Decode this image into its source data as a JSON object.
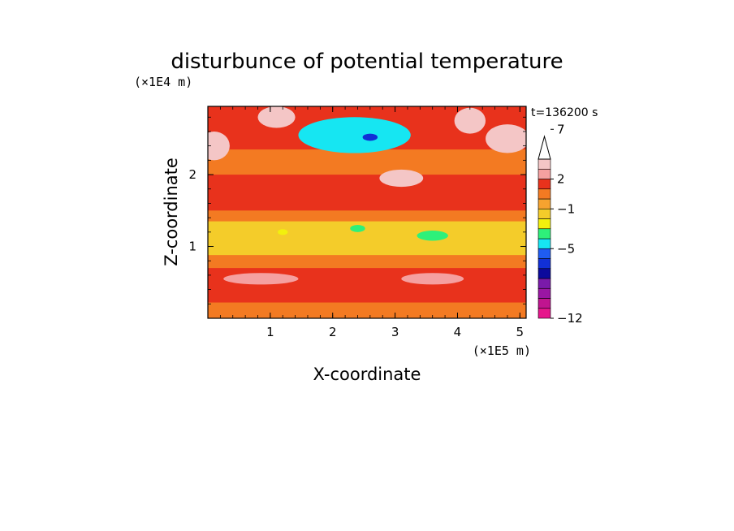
{
  "chart_data": {
    "type": "heatmap",
    "title": "disturbunce of potential temperature",
    "xlabel": "X-coordinate",
    "ylabel": "Z-coordinate",
    "x_unit": "(×1E5 m)",
    "z_unit": "(×1E4 m)",
    "time_label": "t=136200 s",
    "xlim": [
      0,
      5.1
    ],
    "zlim": [
      0,
      2.95
    ],
    "x_ticks": [
      1,
      2,
      3,
      4,
      5
    ],
    "z_ticks": [
      1,
      2
    ],
    "colorbar": {
      "levels": [
        -12,
        -11,
        -10,
        -9,
        -8,
        -7,
        -6,
        -5,
        -4,
        -3,
        -2,
        -1,
        0,
        1,
        2,
        3,
        4,
        5,
        6,
        7,
        8,
        9,
        10
      ],
      "labeled_ticks": [
        {
          "value": 7,
          "label": "7"
        },
        {
          "value": 2,
          "label": "2"
        },
        {
          "value": -1,
          "label": "−1"
        },
        {
          "value": -5,
          "label": "−5"
        },
        {
          "value": -12,
          "label": "−12"
        }
      ],
      "extend": "max",
      "colors": [
        "#e6158c",
        "#c0148f",
        "#9a16a3",
        "#7a1aaa",
        "#0c0a9c",
        "#1130d6",
        "#1f5cf2",
        "#16e6f2",
        "#2ef07a",
        "#f2f00d",
        "#f4cc2a",
        "#f6a32f",
        "#f37a22",
        "#e8321c",
        "#f5a0a0",
        "#f4c6c6"
      ]
    },
    "fields": {
      "background_level": 0.5,
      "bands": [
        {
          "z": [
            0.0,
            0.22
          ],
          "value": 0.8
        },
        {
          "z": [
            0.22,
            0.7
          ],
          "value": 1.3
        },
        {
          "z": [
            0.7,
            0.88
          ],
          "value": 0.0
        },
        {
          "z": [
            0.88,
            1.35
          ],
          "value": -1.4
        },
        {
          "z": [
            1.35,
            1.5
          ],
          "value": 0.0
        },
        {
          "z": [
            1.5,
            2.0
          ],
          "value": 1.3
        },
        {
          "z": [
            2.0,
            2.35
          ],
          "value": 0.1
        },
        {
          "z": [
            2.35,
            2.95
          ],
          "value": 1.0
        }
      ],
      "features": [
        {
          "x": 2.35,
          "z": 2.55,
          "rx": 0.9,
          "rz": 0.25,
          "value": -4.2
        },
        {
          "x": 2.6,
          "z": 2.52,
          "rx": 0.12,
          "rz": 0.05,
          "value": -7.0
        },
        {
          "x": 0.1,
          "z": 2.4,
          "rx": 0.25,
          "rz": 0.2,
          "value": 5.5
        },
        {
          "x": 4.8,
          "z": 2.5,
          "rx": 0.35,
          "rz": 0.2,
          "value": 6.5
        },
        {
          "x": 3.1,
          "z": 1.95,
          "rx": 0.35,
          "rz": 0.12,
          "value": 4.5
        },
        {
          "x": 4.2,
          "z": 2.75,
          "rx": 0.25,
          "rz": 0.18,
          "value": 3.0
        },
        {
          "x": 1.1,
          "z": 2.8,
          "rx": 0.3,
          "rz": 0.15,
          "value": 3.0
        },
        {
          "x": 1.2,
          "z": 1.2,
          "rx": 0.08,
          "rz": 0.04,
          "value": -3.0
        },
        {
          "x": 2.4,
          "z": 1.25,
          "rx": 0.12,
          "rz": 0.05,
          "value": -3.5
        },
        {
          "x": 3.6,
          "z": 1.15,
          "rx": 0.25,
          "rz": 0.07,
          "value": -3.5
        },
        {
          "x": 0.85,
          "z": 0.55,
          "rx": 0.6,
          "rz": 0.08,
          "value": 2.3
        },
        {
          "x": 3.6,
          "z": 0.55,
          "rx": 0.5,
          "rz": 0.08,
          "value": 2.3
        }
      ]
    }
  }
}
